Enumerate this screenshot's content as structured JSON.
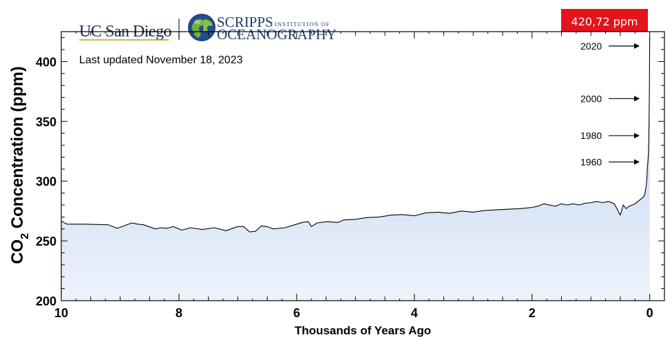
{
  "header": {
    "ucsd_logo": "UC San Diego",
    "scripps_logo_line1": "SCRIPPS",
    "scripps_logo_small": "INSTITUTION OF",
    "scripps_logo_line2": "OCEANOGRAPHY",
    "last_updated": "Last updated November 18, 2023",
    "current_value_badge": "420,72 ppm"
  },
  "colors": {
    "fill_top": "#b4cdf0",
    "fill_bottom": "#eef3fb",
    "line": "#000000",
    "badge": "#e3141b",
    "logo_navy": "#182b49"
  },
  "icons": {
    "globe": "globe-icon"
  },
  "chart_data": {
    "type": "area",
    "xlabel": "Thousands of Years Ago",
    "ylabel_main": "CO",
    "ylabel_sub": "2",
    "ylabel_rest": " Concentration (ppm)",
    "xlim": [
      10,
      -0.25
    ],
    "ylim": [
      200,
      425
    ],
    "x_ticks": [
      10,
      8,
      6,
      4,
      2,
      0
    ],
    "x_tick_labels": [
      "10",
      "8",
      "6",
      "4",
      "2",
      "0"
    ],
    "y_ticks": [
      200,
      250,
      300,
      350,
      400
    ],
    "y_tick_labels": [
      "200",
      "250",
      "300",
      "350",
      "400"
    ],
    "annotations": [
      {
        "label": "2020",
        "y": 413
      },
      {
        "label": "2000",
        "y": 369
      },
      {
        "label": "1980",
        "y": 338
      },
      {
        "label": "1960",
        "y": 316
      }
    ],
    "series": [
      {
        "x": [
          10,
          9.9,
          9.6,
          9.2,
          9.05,
          8.8,
          8.7,
          8.6,
          8.4,
          8.3,
          8.2,
          8.1,
          7.95,
          7.8,
          7.6,
          7.4,
          7.2,
          7.0,
          6.9,
          6.8,
          6.7,
          6.6,
          6.5,
          6.4,
          6.2,
          6.0,
          5.9,
          5.8,
          5.75,
          5.65,
          5.5,
          5.3,
          5.2,
          5.0,
          4.8,
          4.6,
          4.4,
          4.2,
          4.0,
          3.8,
          3.6,
          3.4,
          3.2,
          3.0,
          2.8,
          2.6,
          2.4,
          2.2,
          2.0,
          1.9,
          1.8,
          1.7,
          1.6,
          1.5,
          1.4,
          1.3,
          1.2,
          1.1,
          1.0,
          0.9,
          0.8,
          0.7,
          0.6,
          0.5,
          0.45,
          0.4,
          0.35,
          0.3,
          0.25,
          0.2,
          0.15,
          0.1,
          0.08,
          0.06,
          0.05,
          0.04,
          0.03,
          0.02,
          0.015,
          0.01,
          0.005,
          0.0
        ],
        "values": [
          266.5,
          264,
          264,
          263.5,
          260.5,
          265,
          264,
          263.5,
          260,
          261,
          260.5,
          262,
          259,
          261,
          259.5,
          261,
          258.5,
          262,
          262,
          257.5,
          258,
          262.5,
          262,
          260,
          261,
          264,
          265.5,
          266,
          262,
          265,
          266,
          265.5,
          267.5,
          268,
          269.5,
          270,
          271.5,
          272,
          271,
          273.5,
          274,
          273,
          275,
          274,
          275.5,
          276,
          276.5,
          277,
          278,
          279,
          281,
          280,
          279,
          281,
          280,
          281,
          280,
          281.5,
          282,
          283,
          282,
          283,
          281,
          271.5,
          280,
          277,
          279,
          280,
          281,
          283,
          285,
          287,
          290,
          296,
          301,
          311,
          317,
          325,
          340,
          355,
          380,
          420.72
        ]
      }
    ]
  }
}
